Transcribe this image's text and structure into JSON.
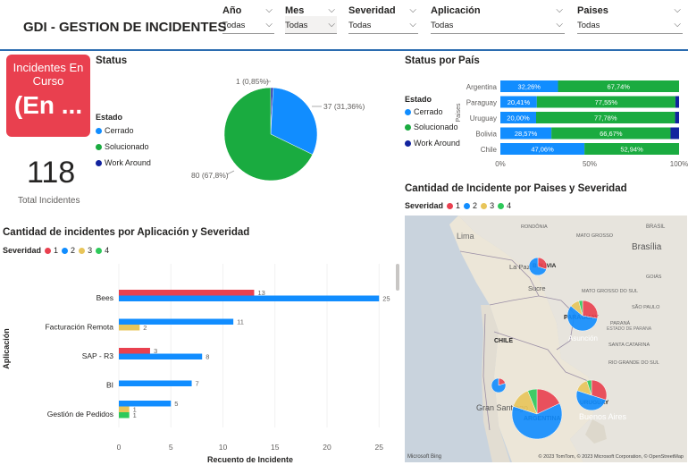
{
  "header": {
    "title": "GDI - GESTION DE INCIDENTES"
  },
  "slicers": [
    {
      "label": "Año",
      "value": "Todas"
    },
    {
      "label": "Mes",
      "value": "Todas"
    },
    {
      "label": "Severidad",
      "value": "Todas"
    },
    {
      "label": "Aplicación",
      "value": "Todas"
    },
    {
      "label": "Paises",
      "value": "Todas"
    }
  ],
  "kpi": {
    "card_line1": "Incidentes En",
    "card_line2": "Curso",
    "card_value": "(En ...",
    "total_value": "118",
    "total_label": "Total Incidentes"
  },
  "colors": {
    "cerrado": "#118dff",
    "solucionado": "#1aab40",
    "work_around": "#12239e",
    "sev1": "#e9404f",
    "sev2": "#118dff",
    "sev3": "#e8c55a",
    "sev4": "#2ec95a",
    "accent": "#2b6cb0"
  },
  "status": {
    "title": "Status",
    "legend_title": "Estado",
    "legend": [
      "Cerrado",
      "Solucionado",
      "Work Around"
    ],
    "labels": [
      "1 (0,85%)",
      "37 (31,36%)",
      "80 (67,8%)"
    ]
  },
  "status_pais": {
    "title": "Status por País",
    "legend_title": "Estado",
    "legend": [
      "Cerrado",
      "Solucionado",
      "Work Around"
    ],
    "axis_label": "Paises",
    "x_ticks": [
      "0%",
      "50%",
      "100%"
    ],
    "cell_labels": [
      [
        "32,26%",
        "67,74%"
      ],
      [
        "20,41%",
        "77,55%"
      ],
      [
        "20,00%",
        "77,78%"
      ],
      [
        "28,57%",
        "66,67%"
      ],
      [
        "47,06%",
        "52,94%"
      ]
    ]
  },
  "app_chart": {
    "title": "Cantidad de incidentes por Aplicación y Severidad",
    "legend_title": "Severidad",
    "legend": [
      "1",
      "2",
      "3",
      "4"
    ],
    "ylabel": "Aplicación",
    "xlabel": "Recuento de Incidente"
  },
  "map_section": {
    "title": "Cantidad de Incidente por Paises y Severidad",
    "legend_title": "Severidad",
    "legend": [
      "1",
      "2",
      "3",
      "4"
    ],
    "places": [
      "Lima",
      "BOLIVIA",
      "La Paz",
      "Sucre",
      "PARAGUAY",
      "Asunción",
      "CHILE",
      "URUGUAY",
      "Gran Santiago",
      "ARGENTINA",
      "Buenos Aires",
      "Brasília",
      "MATO GROSSO",
      "GOIÁS",
      "MATO GROSSO DO SUL",
      "PARANÁ",
      "SÃO PAULO",
      "SANTA CATARINA",
      "RIO GRANDE DO SUL",
      "BRASIL",
      "RONDÔNIA",
      "ESTADO DE PARANA"
    ],
    "attribution": "© 2023 TomTom, © 2023 Microsoft Corporation, © OpenStreetMap",
    "brand": "Microsoft Bing"
  },
  "chart_data": [
    {
      "type": "pie",
      "title": "Status",
      "categories": [
        "Work Around",
        "Cerrado",
        "Solucionado"
      ],
      "values": [
        1,
        37,
        80
      ]
    },
    {
      "type": "bar",
      "orientation": "horizontal-stacked-100",
      "title": "Status por País",
      "categories": [
        "Argentina",
        "Paraguay",
        "Uruguay",
        "Bolivia",
        "Chile"
      ],
      "series": [
        {
          "name": "Cerrado",
          "values": [
            32.26,
            20.41,
            20.0,
            28.57,
            47.06
          ]
        },
        {
          "name": "Solucionado",
          "values": [
            67.74,
            77.55,
            77.78,
            66.67,
            52.94
          ]
        },
        {
          "name": "Work Around",
          "values": [
            0,
            2.04,
            2.22,
            4.76,
            0
          ]
        }
      ],
      "xlim": [
        0,
        100
      ]
    },
    {
      "type": "bar",
      "orientation": "horizontal",
      "title": "Cantidad de incidentes por Aplicación y Severidad",
      "categories": [
        "Bees",
        "Facturación Remota",
        "SAP - R3",
        "BI",
        "Gestión de Pedidos"
      ],
      "series": [
        {
          "name": "1",
          "values": [
            13,
            0,
            3,
            0,
            0
          ]
        },
        {
          "name": "2",
          "values": [
            25,
            11,
            8,
            7,
            5
          ]
        },
        {
          "name": "3",
          "values": [
            0,
            2,
            0,
            0,
            1
          ]
        },
        {
          "name": "4",
          "values": [
            0,
            0,
            0,
            0,
            1
          ]
        }
      ],
      "x_ticks": [
        0,
        5,
        10,
        15,
        20,
        25
      ],
      "xlim": [
        0,
        27
      ],
      "xlabel": "Recuento de Incidente",
      "ylabel": "Aplicación"
    }
  ]
}
